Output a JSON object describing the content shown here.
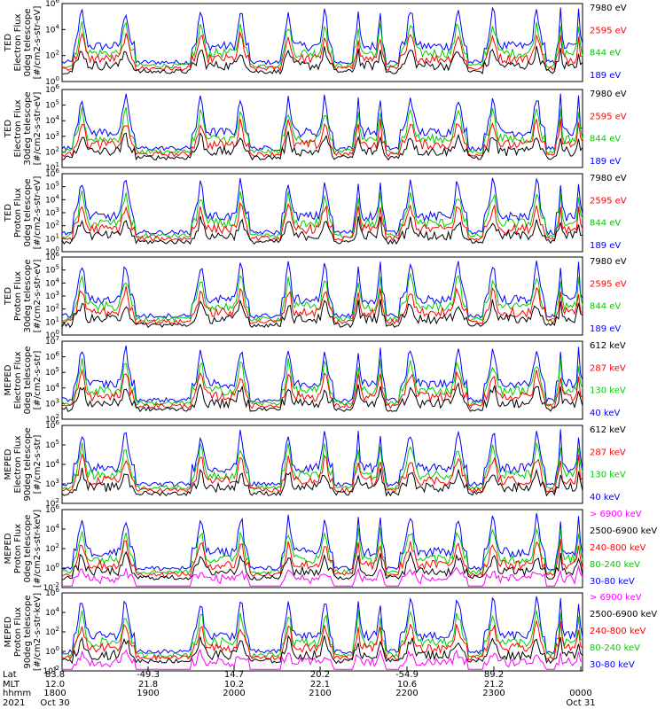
{
  "chart_data": {
    "type": "line",
    "date": "2021",
    "axis_rows": [
      {
        "label": "Lat",
        "values": [
          "83.8",
          "-49.3",
          "14.7",
          "20.2",
          "-54.9",
          "89.2",
          ""
        ]
      },
      {
        "label": "MLT",
        "values": [
          "12.0",
          "21.8",
          "10.2",
          "22.1",
          "10.6",
          "21.2",
          ""
        ]
      },
      {
        "label": "hhmm",
        "values": [
          "1800",
          "1900",
          "2000",
          "2100",
          "2200",
          "2300",
          "0000"
        ]
      },
      {
        "label": "2021",
        "values": [
          "Oct 30",
          "",
          "",
          "",
          "",
          "",
          "Oct 31"
        ]
      }
    ],
    "panels": [
      {
        "ylabel": [
          "TED",
          "Electron Flux",
          "0deg telescope",
          "[#/cm2-s-str-eV]"
        ],
        "ticks": [
          "10^6",
          "10^4",
          "10^2",
          "10^0"
        ],
        "ylim_exp": [
          0,
          6
        ],
        "legend": [
          {
            "name": "7980 eV",
            "color": "#000000"
          },
          {
            "name": "2595 eV",
            "color": "#ff0000"
          },
          {
            "name": "844 eV",
            "color": "#00cc00"
          },
          {
            "name": "189 eV",
            "color": "#0000ff"
          }
        ]
      },
      {
        "ylabel": [
          "TED",
          "Electron Flux",
          "30deg telescope",
          "[#/cm2-s-str-eV]"
        ],
        "ticks": [
          "10^6",
          "10^5",
          "10^4",
          "10^3",
          "10^2",
          "10^1"
        ],
        "ylim_exp": [
          1,
          6
        ],
        "legend": [
          {
            "name": "7980 eV",
            "color": "#000000"
          },
          {
            "name": "2595 eV",
            "color": "#ff0000"
          },
          {
            "name": "844 eV",
            "color": "#00cc00"
          },
          {
            "name": "189 eV",
            "color": "#0000ff"
          }
        ]
      },
      {
        "ylabel": [
          "TED",
          "Proton Flux",
          "0deg telescope",
          "[#/cm2-s-str-eV]"
        ],
        "ticks": [
          "10^6",
          "10^5",
          "10^4",
          "10^3",
          "10^2",
          "10^1",
          "10^0"
        ],
        "ylim_exp": [
          0,
          6
        ],
        "legend": [
          {
            "name": "7980 eV",
            "color": "#000000"
          },
          {
            "name": "2595 eV",
            "color": "#ff0000"
          },
          {
            "name": "844 eV",
            "color": "#00cc00"
          },
          {
            "name": "189 eV",
            "color": "#0000ff"
          }
        ]
      },
      {
        "ylabel": [
          "TED",
          "Proton Flux",
          "30deg telescope",
          "[#/cm2-s-str-eV]"
        ],
        "ticks": [
          "10^6",
          "10^5",
          "10^4",
          "10^3",
          "10^2",
          "10^1",
          "10^0"
        ],
        "ylim_exp": [
          0,
          6
        ],
        "legend": [
          {
            "name": "7980 eV",
            "color": "#000000"
          },
          {
            "name": "2595 eV",
            "color": "#ff0000"
          },
          {
            "name": "844 eV",
            "color": "#00cc00"
          },
          {
            "name": "189 eV",
            "color": "#0000ff"
          }
        ]
      },
      {
        "ylabel": [
          "MEPED",
          "Electron Flux",
          "0deg telescope",
          "[#/cm2-s-str]"
        ],
        "ticks": [
          "10^7",
          "10^6",
          "10^5",
          "10^4",
          "10^3",
          "10^2"
        ],
        "ylim_exp": [
          1.5,
          7
        ],
        "legend": [
          {
            "name": "612 keV",
            "color": "#000000"
          },
          {
            "name": "287 keV",
            "color": "#ff0000"
          },
          {
            "name": "130 keV",
            "color": "#00cc00"
          },
          {
            "name": "40 keV",
            "color": "#0000ff"
          }
        ]
      },
      {
        "ylabel": [
          "MEPED",
          "Electron Flux",
          "90deg telescope",
          "[#/cm2-s-str]"
        ],
        "ticks": [
          "10^6",
          "10^5",
          "10^4",
          "10^3",
          "10^2"
        ],
        "ylim_exp": [
          1.7,
          6.3
        ],
        "legend": [
          {
            "name": "612 keV",
            "color": "#000000"
          },
          {
            "name": "287 keV",
            "color": "#ff0000"
          },
          {
            "name": "130 keV",
            "color": "#00cc00"
          },
          {
            "name": "40 keV",
            "color": "#0000ff"
          }
        ]
      },
      {
        "ylabel": [
          "MEPED",
          "Proton Flux",
          "0deg telescope",
          "[#/cm2-s-str-keV]"
        ],
        "ticks": [
          "10^6",
          "10^4",
          "10^2",
          "10^0",
          "10^-2"
        ],
        "ylim_exp": [
          -2.5,
          6
        ],
        "legend": [
          {
            "name": "> 6900 keV",
            "color": "#ff00ff"
          },
          {
            "name": "2500-6900 keV",
            "color": "#000000"
          },
          {
            "name": "240-800 keV",
            "color": "#ff0000"
          },
          {
            "name": "80-240 keV",
            "color": "#00cc00"
          },
          {
            "name": "30-80 keV",
            "color": "#0000ff"
          }
        ]
      },
      {
        "ylabel": [
          "MEPED",
          "Proton Flux",
          "90deg telescope",
          "[#/cm2-s-str-keV]"
        ],
        "ticks": [
          "10^6",
          "10^4",
          "10^2",
          "10^0",
          "10^-2"
        ],
        "ylim_exp": [
          -2.5,
          6
        ],
        "legend": [
          {
            "name": "> 6900 keV",
            "color": "#ff00ff"
          },
          {
            "name": "2500-6900 keV",
            "color": "#000000"
          },
          {
            "name": "240-800 keV",
            "color": "#ff0000"
          },
          {
            "name": "80-240 keV",
            "color": "#00cc00"
          },
          {
            "name": "30-80 keV",
            "color": "#0000ff"
          }
        ]
      }
    ]
  }
}
